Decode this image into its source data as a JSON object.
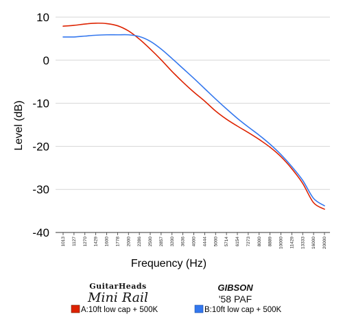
{
  "chart_data": {
    "type": "line",
    "xlabel": "Frequency (Hz)",
    "ylabel": "Level (dB)",
    "ylim": [
      -40,
      10
    ],
    "y_ticks": [
      "10",
      "0",
      "-10",
      "-20",
      "-30",
      "-40"
    ],
    "x_tick_labels": [
      "1013",
      "1127",
      "1270",
      "1429",
      "1600",
      "1778",
      "2000",
      "2286",
      "2500",
      "2857",
      "3200",
      "3636",
      "4000",
      "4444",
      "5000",
      "5714",
      "6154",
      "7273",
      "8000",
      "8889",
      "10000",
      "11429",
      "13333",
      "16000",
      "20000"
    ],
    "grid": "horizontal",
    "series": [
      {
        "name": "A:10ft low cap + 500K",
        "brand": "GuitarHeads",
        "model": "Mini Rail",
        "color": "#dd2200",
        "values": [
          7.9,
          8.1,
          8.4,
          8.6,
          8.5,
          8.0,
          6.8,
          4.9,
          2.6,
          0.1,
          -2.6,
          -5.1,
          -7.4,
          -9.5,
          -11.8,
          -13.7,
          -15.3,
          -16.8,
          -18.4,
          -20.2,
          -22.4,
          -25.2,
          -28.6,
          -33.1,
          -34.6
        ]
      },
      {
        "name": "B:10ft low cap + 500K",
        "brand": "GIBSON",
        "model": "'58 PAF",
        "color": "#3377ee",
        "values": [
          5.4,
          5.4,
          5.6,
          5.8,
          5.9,
          5.9,
          5.9,
          5.5,
          4.4,
          2.6,
          0.4,
          -1.9,
          -4.2,
          -6.6,
          -9.0,
          -11.3,
          -13.5,
          -15.5,
          -17.4,
          -19.5,
          -21.9,
          -24.7,
          -27.9,
          -32.1,
          -33.8
        ]
      }
    ]
  }
}
